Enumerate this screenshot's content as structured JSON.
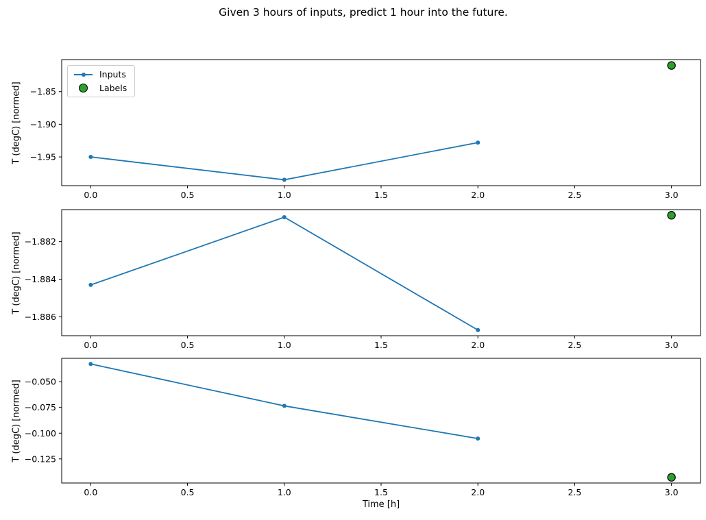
{
  "figure": {
    "title": "Given 3 hours of inputs, predict 1 hour into the future.",
    "xlabel": "Time [h]",
    "background": "#ffffff"
  },
  "style": {
    "line_color": "#1f77b4",
    "label_color": "#2ca02c",
    "label_edge_color": "#000000",
    "spine_color": "#000000",
    "text_color": "#000000"
  },
  "legend": {
    "position": "upper-left-of-first-subplot",
    "items": [
      {
        "label": "Inputs",
        "marker": "line-with-dot",
        "color": "#1f77b4"
      },
      {
        "label": "Labels",
        "marker": "circle",
        "color": "#2ca02c",
        "edge": "#000000"
      }
    ]
  },
  "chart_data": [
    {
      "type": "line",
      "ylabel": "T (degC) [normed]",
      "xlim": [
        -0.15,
        3.15
      ],
      "ylim": [
        -1.994,
        -1.801
      ],
      "xticks": {
        "values": [
          0,
          0.5,
          1,
          1.5,
          2,
          2.5,
          3
        ],
        "labels": [
          "0.0",
          "0.5",
          "1.0",
          "1.5",
          "2.0",
          "2.5",
          "3.0"
        ]
      },
      "yticks": {
        "values": [
          -1.85,
          -1.9,
          -1.95
        ],
        "labels": [
          "−1.85",
          "−1.90",
          "−1.95"
        ]
      },
      "series": [
        {
          "name": "Inputs",
          "x": [
            0,
            1,
            2
          ],
          "y": [
            -1.95,
            -1.985,
            -1.928
          ]
        }
      ],
      "scatter": [
        {
          "name": "Labels",
          "x": [
            3
          ],
          "y": [
            -1.81
          ]
        }
      ]
    },
    {
      "type": "line",
      "ylabel": "T (degC) [normed]",
      "xlim": [
        -0.15,
        3.15
      ],
      "ylim": [
        -1.887,
        -1.8803
      ],
      "xticks": {
        "values": [
          0,
          0.5,
          1,
          1.5,
          2,
          2.5,
          3
        ],
        "labels": [
          "0.0",
          "0.5",
          "1.0",
          "1.5",
          "2.0",
          "2.5",
          "3.0"
        ]
      },
      "yticks": {
        "values": [
          -1.882,
          -1.884,
          -1.886
        ],
        "labels": [
          "−1.882",
          "−1.884",
          "−1.886"
        ]
      },
      "series": [
        {
          "name": "Inputs",
          "x": [
            0,
            1,
            2
          ],
          "y": [
            -1.8843,
            -1.8807,
            -1.8867
          ]
        }
      ],
      "scatter": [
        {
          "name": "Labels",
          "x": [
            3
          ],
          "y": [
            -1.8806
          ]
        }
      ]
    },
    {
      "type": "line",
      "ylabel": "T (degC) [normed]",
      "xlim": [
        -0.15,
        3.15
      ],
      "ylim": [
        -0.1484,
        -0.0273
      ],
      "xticks": {
        "values": [
          0,
          0.5,
          1,
          1.5,
          2,
          2.5,
          3
        ],
        "labels": [
          "0.0",
          "0.5",
          "1.0",
          "1.5",
          "2.0",
          "2.5",
          "3.0"
        ]
      },
      "yticks": {
        "values": [
          -0.05,
          -0.075,
          -0.1,
          -0.125
        ],
        "labels": [
          "−0.050",
          "−0.075",
          "−0.100",
          "−0.125"
        ]
      },
      "series": [
        {
          "name": "Inputs",
          "x": [
            0,
            1,
            2
          ],
          "y": [
            -0.0328,
            -0.0735,
            -0.1052
          ]
        }
      ],
      "scatter": [
        {
          "name": "Labels",
          "x": [
            3
          ],
          "y": [
            -0.1429
          ]
        }
      ]
    }
  ]
}
